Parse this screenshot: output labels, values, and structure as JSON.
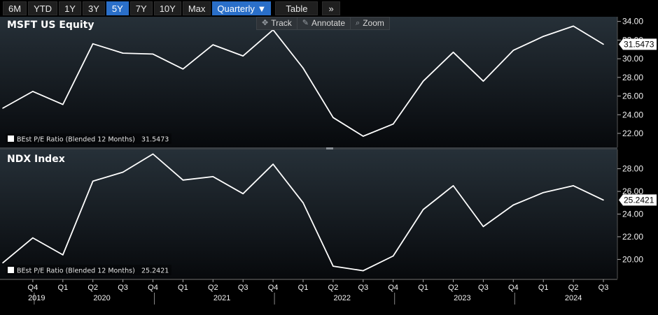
{
  "toolbar": {
    "ranges": [
      "6M",
      "YTD",
      "1Y",
      "3Y",
      "5Y",
      "7Y",
      "10Y",
      "Max"
    ],
    "active_range": "5Y",
    "periodicity": "Quarterly",
    "periodicity_arrow": "▼",
    "table_label": "Table",
    "more_label": "»"
  },
  "chart_tools": {
    "track": "Track",
    "annotate": "Annotate",
    "zoom": "Zoom",
    "icons": [
      "crosshair-icon",
      "pencil-icon",
      "magnifier-icon"
    ]
  },
  "colors": {
    "background": "#000000",
    "line": "#ffffff",
    "active": "#2a6fc9"
  },
  "chart_data": [
    {
      "type": "line",
      "title": "MSFT US Equity",
      "legend": "BEst P/E Ratio (Blended 12 Months)",
      "legend_value": "31.5473",
      "last_value_label": "31.5473",
      "ylim": [
        20.5,
        34.5
      ],
      "yticks": [
        "22.00",
        "24.00",
        "26.00",
        "28.00",
        "30.00",
        "32.00",
        "34.00"
      ],
      "x": [
        "2019 Q3",
        "2019 Q4",
        "2020 Q1",
        "2020 Q2",
        "2020 Q3",
        "2020 Q4",
        "2021 Q1",
        "2021 Q2",
        "2021 Q3",
        "2021 Q4",
        "2022 Q1",
        "2022 Q2",
        "2022 Q3",
        "2022 Q4",
        "2023 Q1",
        "2023 Q2",
        "2023 Q3",
        "2023 Q4",
        "2024 Q1",
        "2024 Q2",
        "2024 Q3"
      ],
      "values": [
        24.7,
        26.5,
        25.1,
        31.6,
        30.6,
        30.5,
        28.9,
        31.5,
        30.3,
        33.1,
        29.0,
        23.7,
        21.7,
        23.0,
        27.6,
        30.7,
        27.6,
        30.9,
        32.4,
        33.5,
        31.55
      ]
    },
    {
      "type": "line",
      "title": "NDX Index",
      "legend": "BEst P/E Ratio (Blended 12 Months)",
      "legend_value": "25.2421",
      "last_value_label": "25.2421",
      "ylim": [
        18.3,
        29.7
      ],
      "yticks": [
        "20.00",
        "22.00",
        "24.00",
        "26.00",
        "28.00"
      ],
      "x": [
        "2019 Q3",
        "2019 Q4",
        "2020 Q1",
        "2020 Q2",
        "2020 Q3",
        "2020 Q4",
        "2021 Q1",
        "2021 Q2",
        "2021 Q3",
        "2021 Q4",
        "2022 Q1",
        "2022 Q2",
        "2022 Q3",
        "2022 Q4",
        "2023 Q1",
        "2023 Q2",
        "2023 Q3",
        "2023 Q4",
        "2024 Q1",
        "2024 Q2",
        "2024 Q3"
      ],
      "values": [
        19.7,
        21.9,
        20.4,
        26.9,
        27.7,
        29.3,
        27.0,
        27.3,
        25.8,
        28.4,
        25.0,
        19.4,
        19.0,
        20.3,
        24.4,
        26.5,
        22.9,
        24.8,
        25.9,
        26.5,
        25.24
      ]
    }
  ],
  "x_axis": {
    "quarter_labels": [
      "Q4",
      "Q1",
      "Q2",
      "Q3",
      "Q4",
      "Q1",
      "Q2",
      "Q3",
      "Q4",
      "Q1",
      "Q2",
      "Q3",
      "Q4",
      "Q1",
      "Q2",
      "Q3",
      "Q4",
      "Q1",
      "Q2",
      "Q3"
    ],
    "years": [
      "2019",
      "2020",
      "2021",
      "2022",
      "2023",
      "2024"
    ]
  }
}
